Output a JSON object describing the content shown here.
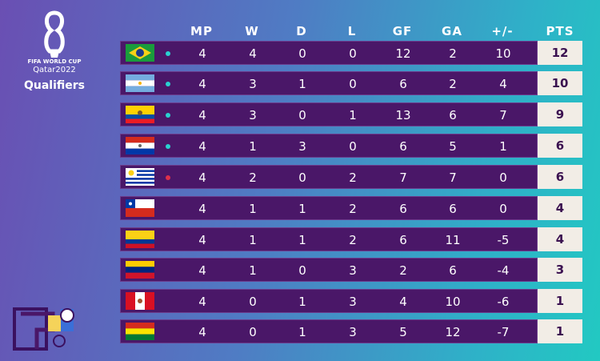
{
  "logo": {
    "line1": "FIFA WORLD CUP",
    "line2": "Qatar2022",
    "line3": "Qualifiers"
  },
  "table": {
    "header": [
      "MP",
      "W",
      "D",
      "L",
      "GF",
      "GA",
      "+/-",
      "PTS"
    ],
    "rows": [
      [
        4,
        4,
        0,
        0,
        12,
        2,
        10,
        12
      ],
      [
        4,
        3,
        1,
        0,
        6,
        2,
        4,
        10
      ],
      [
        4,
        3,
        0,
        1,
        13,
        6,
        7,
        9
      ],
      [
        4,
        1,
        3,
        0,
        6,
        5,
        1,
        6
      ],
      [
        4,
        2,
        0,
        2,
        7,
        7,
        0,
        6
      ],
      [
        4,
        1,
        1,
        2,
        6,
        6,
        0,
        4
      ],
      [
        4,
        1,
        1,
        2,
        6,
        11,
        -5,
        4
      ],
      [
        4,
        1,
        0,
        3,
        2,
        6,
        -4,
        3
      ],
      [
        4,
        0,
        1,
        3,
        4,
        10,
        -6,
        1
      ],
      [
        4,
        0,
        1,
        3,
        5,
        12,
        -7,
        1
      ]
    ]
  }
}
